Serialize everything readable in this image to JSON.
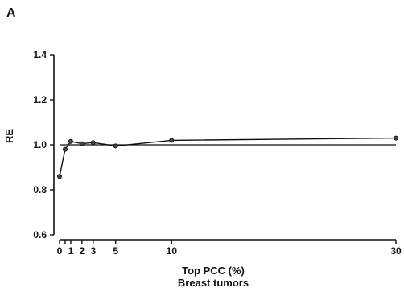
{
  "panel_label": "A",
  "chart_data": {
    "type": "line",
    "xlabel": "Top PCC (%)",
    "xlabel_sub": "Breast tumors",
    "ylabel": "RE",
    "xlim": [
      0,
      30
    ],
    "ylim": [
      0.6,
      1.4
    ],
    "xticks": [
      0,
      0.5,
      1,
      2,
      3,
      5,
      10,
      30
    ],
    "xtick_labels": [
      "0",
      "",
      "1",
      "2",
      "3",
      "5",
      "10",
      "30"
    ],
    "yticks": [
      0.6,
      0.8,
      1.0,
      1.2,
      1.4
    ],
    "ytick_labels": [
      "0.6",
      "0.8",
      "1.0",
      "1.2",
      "1.4"
    ],
    "reference_line": 1.0,
    "series": [
      {
        "x": [
          0,
          0.5,
          1,
          2,
          3,
          5,
          10,
          30
        ],
        "y": [
          0.86,
          0.98,
          1.015,
          1.005,
          1.01,
          0.995,
          1.02,
          1.03
        ]
      }
    ]
  }
}
